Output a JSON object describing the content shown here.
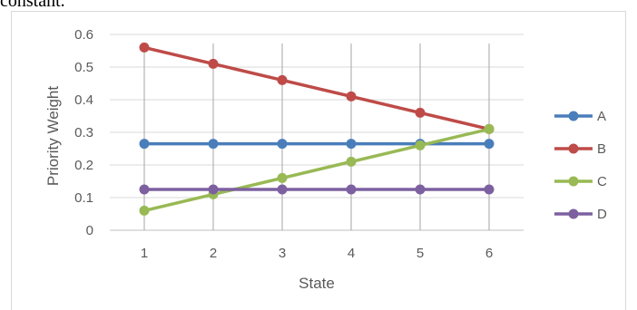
{
  "caption": "constant.",
  "chart_data": {
    "type": "line",
    "title": "",
    "xlabel": "State",
    "ylabel": "Priority Weight",
    "x": [
      1,
      2,
      3,
      4,
      5,
      6
    ],
    "ylim": [
      0,
      0.6
    ],
    "yticks": [
      0,
      0.1,
      0.2,
      0.3,
      0.4,
      0.5,
      0.6
    ],
    "ytick_labels": [
      "0",
      "0.1",
      "0.2",
      "0.3",
      "0.4",
      "0.5",
      "0.6"
    ],
    "grid": "horizontal and vertical",
    "legend_position": "right",
    "series": [
      {
        "name": "A",
        "color": "#4a7ebb",
        "values": [
          0.265,
          0.265,
          0.265,
          0.265,
          0.265,
          0.265
        ]
      },
      {
        "name": "B",
        "color": "#be4b48",
        "values": [
          0.56,
          0.51,
          0.46,
          0.41,
          0.36,
          0.31
        ]
      },
      {
        "name": "C",
        "color": "#98b954",
        "values": [
          0.06,
          0.11,
          0.16,
          0.21,
          0.26,
          0.31
        ]
      },
      {
        "name": "D",
        "color": "#7d60a0",
        "values": [
          0.125,
          0.125,
          0.125,
          0.125,
          0.125,
          0.125
        ]
      }
    ]
  }
}
